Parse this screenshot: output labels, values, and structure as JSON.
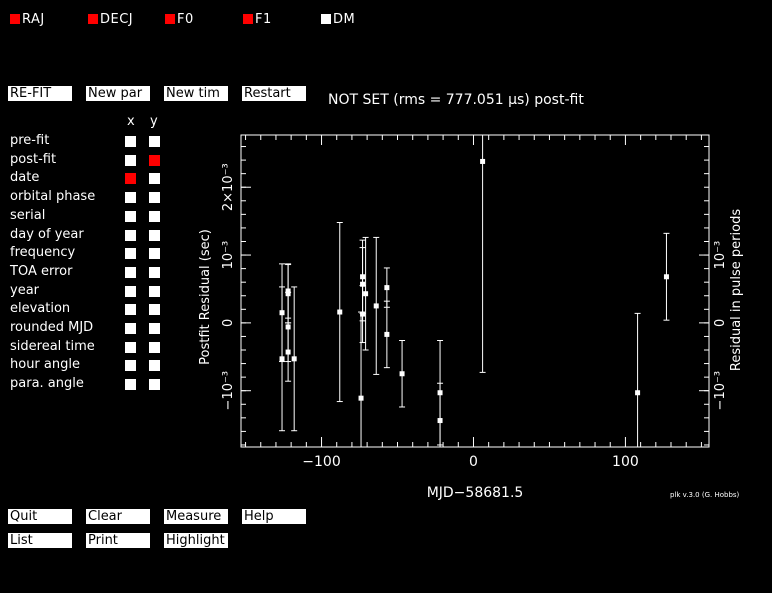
{
  "params": [
    {
      "label": "RAJ",
      "color": "#ff0000"
    },
    {
      "label": "DECJ",
      "color": "#ff0000"
    },
    {
      "label": "F0",
      "color": "#ff0000"
    },
    {
      "label": "F1",
      "color": "#ff0000"
    },
    {
      "label": "DM",
      "color": "#ffffff"
    }
  ],
  "top_buttons": {
    "refit": "RE-FIT",
    "new_par": "New par",
    "new_tim": "New tim",
    "restart": "Restart"
  },
  "status_title": "NOT SET (rms = 777.051 µs) post-fit",
  "axis_selector": {
    "x_header": "x",
    "y_header": "y",
    "rows": [
      {
        "label": "pre-fit",
        "x": false,
        "y": false
      },
      {
        "label": "post-fit",
        "x": false,
        "y": true
      },
      {
        "label": "date",
        "x": true,
        "y": false
      },
      {
        "label": "orbital phase",
        "x": false,
        "y": false
      },
      {
        "label": "serial",
        "x": false,
        "y": false
      },
      {
        "label": "day of year",
        "x": false,
        "y": false
      },
      {
        "label": "frequency",
        "x": false,
        "y": false
      },
      {
        "label": "TOA error",
        "x": false,
        "y": false
      },
      {
        "label": "year",
        "x": false,
        "y": false
      },
      {
        "label": "elevation",
        "x": false,
        "y": false
      },
      {
        "label": "rounded MJD",
        "x": false,
        "y": false
      },
      {
        "label": "sidereal time",
        "x": false,
        "y": false
      },
      {
        "label": "hour angle",
        "x": false,
        "y": false
      },
      {
        "label": "para. angle",
        "x": false,
        "y": false
      }
    ],
    "selected_color": "#ff0000",
    "unselected_color": "#ffffff"
  },
  "bottom_buttons": {
    "quit": "Quit",
    "clear": "Clear",
    "measure": "Measure",
    "help": "Help",
    "list": "List",
    "print": "Print",
    "highlight": "Highlight"
  },
  "version_note": "plk v.3.0 (G. Hobbs)",
  "chart_data": {
    "type": "scatter",
    "xlabel": "MJD−58681.5",
    "ylabel": "Postfit Residual (sec)",
    "ylabel_right": "Residual in pulse periods",
    "xlim": [
      -153,
      155
    ],
    "ylim": [
      -0.00183,
      0.00277
    ],
    "x_ticks": [
      -100,
      0,
      100
    ],
    "x_tick_labels": [
      "−100",
      "0",
      "100"
    ],
    "y_ticks": [
      -0.001,
      0,
      0.001,
      0.002
    ],
    "y_tick_labels": [
      "−10⁻³",
      "0",
      "10⁻³",
      "2×10⁻³"
    ],
    "y_right_ticks": [
      -0.001,
      0,
      0.001
    ],
    "y_right_tick_labels": [
      "−10⁻³",
      "0",
      "10⁻³"
    ],
    "point_color": "#ffffff",
    "points": [
      {
        "x": -126,
        "y": 0.00015,
        "err": 0.00072
      },
      {
        "x": -126,
        "y": -0.00053,
        "err": 0.00106
      },
      {
        "x": -122,
        "y": 0.00047,
        "err": 0.0004
      },
      {
        "x": -122,
        "y": 0.00043,
        "err": 0.00043
      },
      {
        "x": -122,
        "y": -6e-05,
        "err": 0.00051
      },
      {
        "x": -122,
        "y": -0.00043,
        "err": 0.00043
      },
      {
        "x": -118,
        "y": -0.00053,
        "err": 0.00106
      },
      {
        "x": -88,
        "y": 0.00016,
        "err": 0.00132
      },
      {
        "x": -73,
        "y": 0.00068,
        "err": 0.00054
      },
      {
        "x": -73,
        "y": 0.00057,
        "err": 0.00054
      },
      {
        "x": -73,
        "y": 0.00013,
        "err": 0.00042
      },
      {
        "x": -74,
        "y": -0.00111,
        "err": 0.00127
      },
      {
        "x": -71,
        "y": 0.00043,
        "err": 0.00083
      },
      {
        "x": -64,
        "y": 0.00025,
        "err": 0.00101
      },
      {
        "x": -57,
        "y": 0.00052,
        "err": 0.00029
      },
      {
        "x": -57,
        "y": -0.00017,
        "err": 0.00049
      },
      {
        "x": -47,
        "y": -0.00075,
        "err": 0.00049
      },
      {
        "x": -22,
        "y": -0.00103,
        "err": 0.00077
      },
      {
        "x": -22,
        "y": -0.00144,
        "err": 0.00055
      },
      {
        "x": 6,
        "y": 0.00238,
        "err": 0.00311
      },
      {
        "x": 108,
        "y": -0.00103,
        "err": 0.00117
      },
      {
        "x": 127,
        "y": 0.00068,
        "err": 0.00064
      }
    ]
  }
}
